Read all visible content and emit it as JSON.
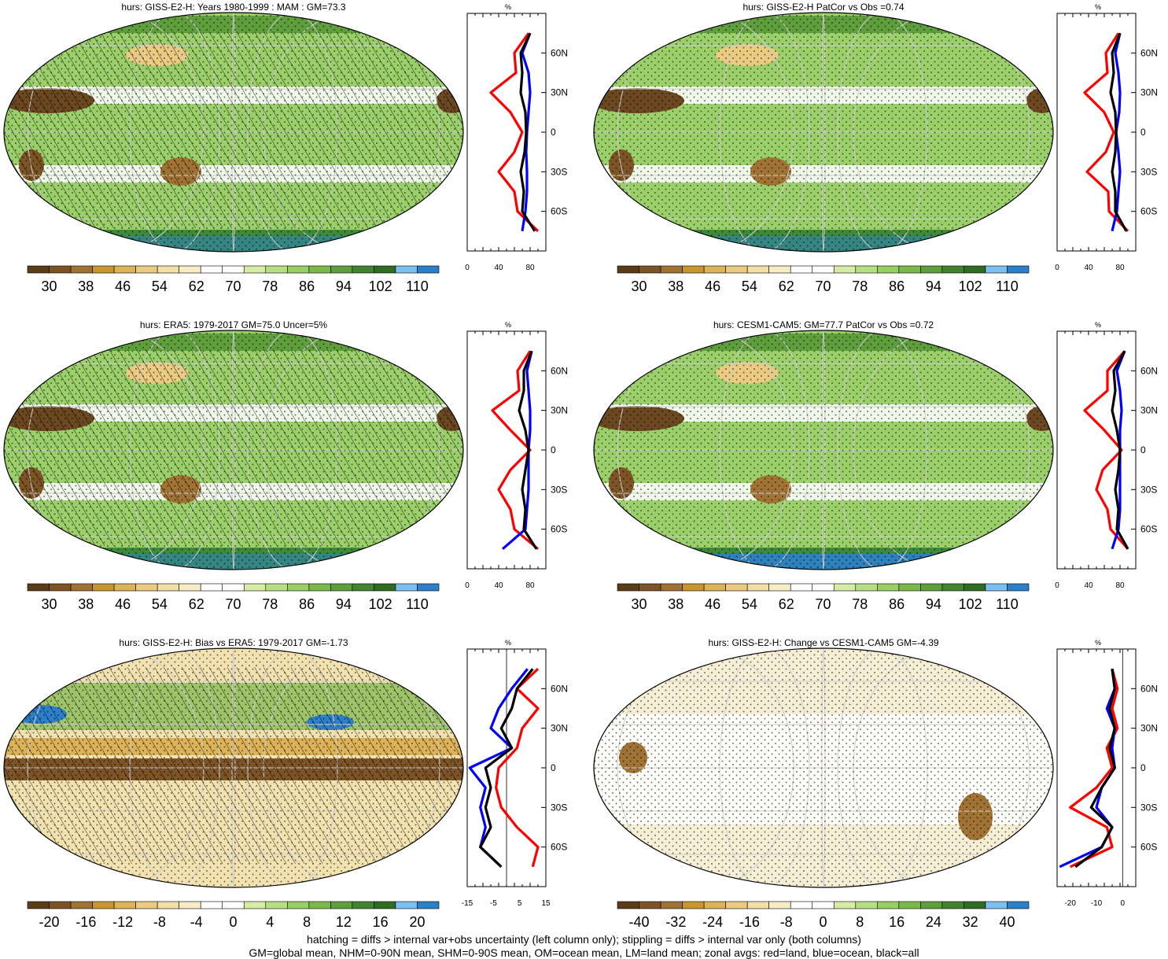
{
  "colors": {
    "brown_green_palette": [
      "#5a3d17",
      "#7d5426",
      "#a07334",
      "#c8962e",
      "#dcb358",
      "#ebcb81",
      "#f2dfa5",
      "#f7ecc6",
      "#ffffff",
      "#ffffff",
      "#d6eba6",
      "#b8de84",
      "#98cf63",
      "#7ab84c",
      "#5f9e3c",
      "#43822f",
      "#2f6b21",
      "#7cc0ef",
      "#2c7fc9"
    ],
    "land_line": "#ff0000",
    "ocean_line": "#0000ff",
    "all_line": "#000000",
    "ocean_fill": "#9bcf6a"
  },
  "footer": {
    "line1": "hatching = diffs > internal var+obs uncertainty (left column only); stippling = diffs > internal var only (both columns)",
    "line2": "GM=global mean, NHM=0-90N mean, SHM=0-90S mean, OM=ocean mean, LM=land mean; zonal avgs: red=land, blue=ocean, black=all"
  },
  "panels": [
    {
      "id": "p1",
      "title": "hurs: GISS-E2-H: Years 1980-1999 : MAM : GM=73.3",
      "colorbar_labels": [
        "30",
        "38",
        "46",
        "54",
        "62",
        "70",
        "78",
        "86",
        "94",
        "102",
        "110"
      ],
      "hatched": true
    },
    {
      "id": "p2",
      "title": "hurs: GISS-E2-H PatCor vs Obs =0.74",
      "colorbar_labels": [
        "30",
        "38",
        "46",
        "54",
        "62",
        "70",
        "78",
        "86",
        "94",
        "102",
        "110"
      ],
      "hatched": false
    },
    {
      "id": "p3",
      "title": "hurs: ERA5: 1979-2017 GM=75.0 Uncer=5%",
      "colorbar_labels": [
        "30",
        "38",
        "46",
        "54",
        "62",
        "70",
        "78",
        "86",
        "94",
        "102",
        "110"
      ],
      "hatched": true
    },
    {
      "id": "p4",
      "title": "hurs: CESM1-CAM5: GM=77.7 PatCor vs Obs =0.72",
      "colorbar_labels": [
        "30",
        "38",
        "46",
        "54",
        "62",
        "70",
        "78",
        "86",
        "94",
        "102",
        "110"
      ],
      "hatched": false
    },
    {
      "id": "p5",
      "title": "hurs: GISS-E2-H: Bias vs ERA5: 1979-2017 GM=-1.73",
      "colorbar_labels": [
        "-20",
        "-16",
        "-12",
        "-8",
        "-4",
        "0",
        "4",
        "8",
        "12",
        "16",
        "20"
      ],
      "hatched": true
    },
    {
      "id": "p6",
      "title": "hurs: GISS-E2-H: Change vs CESM1-CAM5 GM=-4.39",
      "colorbar_labels": [
        "-40",
        "-32",
        "-24",
        "-16",
        "-8",
        "0",
        "8",
        "16",
        "24",
        "32",
        "40"
      ],
      "hatched": false
    }
  ],
  "chart_data": [
    {
      "type": "line",
      "panel": "p1",
      "unit_label": "%",
      "xlim": [
        0,
        100
      ],
      "xticks": [
        "0",
        "40",
        "80"
      ],
      "ylim": [
        -90,
        90
      ],
      "yticks": [
        "60N",
        "30N",
        "0",
        "30S",
        "60S"
      ],
      "y": [
        75,
        60,
        45,
        30,
        15,
        0,
        -15,
        -30,
        -45,
        -60,
        -75
      ],
      "series": [
        {
          "name": "red=land",
          "values": [
            78,
            60,
            62,
            30,
            55,
            70,
            60,
            40,
            60,
            64,
            90
          ]
        },
        {
          "name": "blue=ocean",
          "values": [
            80,
            70,
            78,
            80,
            78,
            76,
            75,
            76,
            76,
            74,
            70
          ]
        },
        {
          "name": "black=all",
          "values": [
            80,
            68,
            70,
            68,
            74,
            75,
            73,
            68,
            72,
            70,
            86
          ]
        }
      ]
    },
    {
      "type": "line",
      "panel": "p2",
      "unit_label": "%",
      "xlim": [
        0,
        100
      ],
      "xticks": [
        "0",
        "40",
        "80"
      ],
      "ylim": [
        -90,
        90
      ],
      "yticks": [
        "60N",
        "30N",
        "0",
        "30S",
        "60S"
      ],
      "y": [
        75,
        60,
        45,
        30,
        15,
        0,
        -15,
        -30,
        -45,
        -60,
        -75
      ],
      "series": [
        {
          "name": "red=land",
          "values": [
            78,
            62,
            64,
            35,
            60,
            72,
            62,
            38,
            65,
            66,
            90
          ]
        },
        {
          "name": "blue=ocean",
          "values": [
            80,
            74,
            78,
            80,
            79,
            75,
            78,
            80,
            78,
            76,
            70
          ]
        },
        {
          "name": "black=all",
          "values": [
            80,
            70,
            72,
            68,
            74,
            75,
            74,
            70,
            74,
            74,
            88
          ]
        }
      ]
    },
    {
      "type": "line",
      "panel": "p3",
      "unit_label": "%",
      "xlim": [
        0,
        100
      ],
      "xticks": [
        "0",
        "40",
        "80"
      ],
      "ylim": [
        -90,
        90
      ],
      "yticks": [
        "60N",
        "30N",
        "0",
        "30S",
        "60S"
      ],
      "y": [
        75,
        60,
        45,
        30,
        15,
        0,
        -15,
        -30,
        -45,
        -60,
        -75
      ],
      "series": [
        {
          "name": "red=land",
          "values": [
            80,
            64,
            66,
            32,
            55,
            80,
            55,
            40,
            55,
            60,
            90
          ]
        },
        {
          "name": "blue=ocean",
          "values": [
            82,
            76,
            78,
            80,
            80,
            78,
            78,
            78,
            76,
            74,
            45
          ]
        },
        {
          "name": "black=all",
          "values": [
            82,
            72,
            72,
            66,
            74,
            78,
            74,
            70,
            74,
            72,
            88
          ]
        }
      ]
    },
    {
      "type": "line",
      "panel": "p4",
      "unit_label": "%",
      "xlim": [
        0,
        100
      ],
      "xticks": [
        "0",
        "40",
        "80"
      ],
      "ylim": [
        -90,
        90
      ],
      "yticks": [
        "60N",
        "30N",
        "0",
        "30S",
        "60S"
      ],
      "y": [
        75,
        60,
        45,
        30,
        15,
        0,
        -15,
        -30,
        -45,
        -60,
        -75
      ],
      "series": [
        {
          "name": "red=land",
          "values": [
            86,
            64,
            64,
            35,
            60,
            82,
            58,
            50,
            64,
            68,
            90
          ]
        },
        {
          "name": "blue=ocean",
          "values": [
            86,
            76,
            80,
            82,
            80,
            80,
            80,
            80,
            80,
            78,
            70
          ]
        },
        {
          "name": "black=all",
          "values": [
            86,
            72,
            74,
            70,
            76,
            80,
            78,
            74,
            78,
            76,
            90
          ]
        }
      ]
    },
    {
      "type": "line",
      "panel": "p5",
      "unit_label": "%",
      "xlim": [
        -15,
        15
      ],
      "xticks": [
        "-15",
        "-5",
        "5",
        "15"
      ],
      "ylim": [
        -90,
        90
      ],
      "yticks": [
        "60N",
        "30N",
        "0",
        "30S",
        "60S"
      ],
      "y": [
        75,
        60,
        45,
        30,
        15,
        0,
        -15,
        -30,
        -45,
        -60,
        -75
      ],
      "series": [
        {
          "name": "red=land",
          "values": [
            12,
            4,
            12,
            6,
            4,
            -3,
            -4,
            -2,
            4,
            12,
            10
          ]
        },
        {
          "name": "blue=ocean",
          "values": [
            8,
            2,
            -3,
            -6,
            2,
            -14,
            -8,
            -10,
            -8,
            -10,
            -2
          ]
        },
        {
          "name": "black=all",
          "values": [
            10,
            4,
            2,
            -2,
            2,
            -8,
            -6,
            -8,
            -6,
            -10,
            -2
          ]
        }
      ]
    },
    {
      "type": "line",
      "panel": "p6",
      "unit_label": "%",
      "xlim": [
        -25,
        5
      ],
      "xticks": [
        "-20",
        "-10",
        "0"
      ],
      "ylim": [
        -90,
        90
      ],
      "yticks": [
        "60N",
        "30N",
        "0",
        "30S",
        "60S"
      ],
      "y": [
        75,
        60,
        45,
        30,
        15,
        0,
        -15,
        -30,
        -45,
        -60,
        -75
      ],
      "series": [
        {
          "name": "red=land",
          "values": [
            -4,
            -2,
            -4,
            -2,
            -6,
            -4,
            -10,
            -20,
            -6,
            -4,
            -20
          ]
        },
        {
          "name": "blue=ocean",
          "values": [
            -4,
            -3,
            -6,
            -3,
            -4,
            -3,
            -8,
            -10,
            -4,
            -8,
            -24
          ]
        },
        {
          "name": "black=all",
          "values": [
            -4,
            -3,
            -5,
            -3,
            -5,
            -3,
            -8,
            -12,
            -4,
            -8,
            -18
          ]
        }
      ]
    }
  ]
}
